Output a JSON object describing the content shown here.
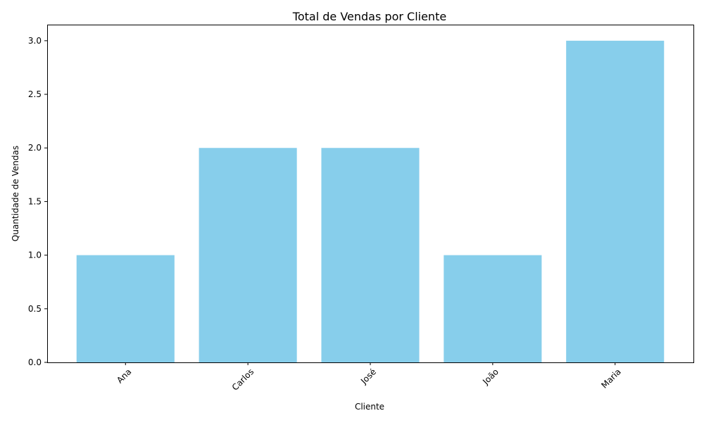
{
  "chart_data": {
    "type": "bar",
    "title": "Total de Vendas por Cliente",
    "xlabel": "Cliente",
    "ylabel": "Quantidade de Vendas",
    "categories": [
      "Ana",
      "Carlos",
      "José",
      "João",
      "Maria"
    ],
    "values": [
      1,
      2,
      2,
      1,
      3
    ],
    "ylim": [
      0,
      3.15
    ],
    "yticks": [
      0.0,
      0.5,
      1.0,
      1.5,
      2.0,
      2.5,
      3.0
    ],
    "ytick_labels": [
      "0.0",
      "0.5",
      "1.0",
      "1.5",
      "2.0",
      "2.5",
      "3.0"
    ],
    "x_tick_rotation_deg": 45,
    "grid": false,
    "colors": {
      "bar": "#87ceeb",
      "axis": "#000000",
      "text": "#000000",
      "background": "#ffffff"
    }
  }
}
